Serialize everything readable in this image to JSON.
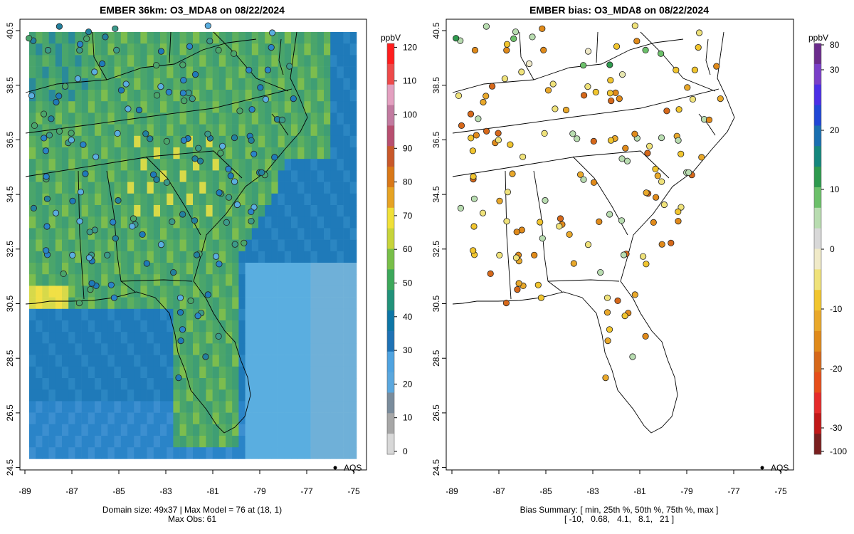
{
  "left_panel": {
    "title": "EMBER 36km: O3_MDA8 on 08/22/2024",
    "y_ticks": [
      "40.5",
      "38.5",
      "36.5",
      "34.5",
      "32.5",
      "30.5",
      "28.5",
      "26.5",
      "24.5"
    ],
    "x_ticks": [
      "-89",
      "-87",
      "-85",
      "-83",
      "-81",
      "-79",
      "-77",
      "-75"
    ],
    "footer_line1": "Domain size: 49x37 | Max Model = 76 at (18, 1)",
    "footer_line2": "Max Obs: 61",
    "legend_point_label": "AQS",
    "colorbar": {
      "unit": "ppbV",
      "ticks": [
        "0",
        "10",
        "20",
        "30",
        "40",
        "50",
        "60",
        "70",
        "80",
        "90",
        "100",
        "110",
        "120"
      ],
      "colors": [
        "#d8d8d8",
        "#a7a7a7",
        "#7a8c9c",
        "#5aa7de",
        "#4fa3e0",
        "#1e72b5",
        "#0d76a6",
        "#21927a",
        "#3ca85a",
        "#78bf48",
        "#c7d43a",
        "#f0e038",
        "#e6a323",
        "#d97818",
        "#c9582a",
        "#b84f70",
        "#c27aa0",
        "#e3a0c0",
        "#ee4a4a",
        "#ff1e1e"
      ]
    }
  },
  "right_panel": {
    "title": "EMBER bias: O3_MDA8 on 08/22/2024",
    "y_ticks": [
      "40.5",
      "38.5",
      "36.5",
      "34.5",
      "32.5",
      "30.5",
      "28.5",
      "26.5",
      "24.5"
    ],
    "x_ticks": [
      "-89",
      "-87",
      "-85",
      "-83",
      "-81",
      "-79",
      "-77",
      "-75"
    ],
    "footer_line1": "Bias Summary: [ min, 25th %, 50th %, 75th %, max ]",
    "footer_line2": "[ -10,   0.68,   4.1,   8.1,   21 ]",
    "legend_point_label": "AQS",
    "colorbar": {
      "unit": "ppbV",
      "ticks": [
        "80",
        "30",
        "20",
        "10",
        "0",
        "-10",
        "-20",
        "-30",
        "-100"
      ],
      "colors": [
        "#7a1f1f",
        "#c01818",
        "#e52b2b",
        "#e64e1a",
        "#d6681a",
        "#e08a1a",
        "#e9a82a",
        "#f1c52e",
        "#efe27a",
        "#f0eac8",
        "#d8d8d8",
        "#b8dcb0",
        "#6cc06a",
        "#2e9a4e",
        "#15877d",
        "#1a6fb0",
        "#2047d6",
        "#4b2fe6",
        "#7a3fc8",
        "#6b2c8c"
      ]
    }
  }
}
